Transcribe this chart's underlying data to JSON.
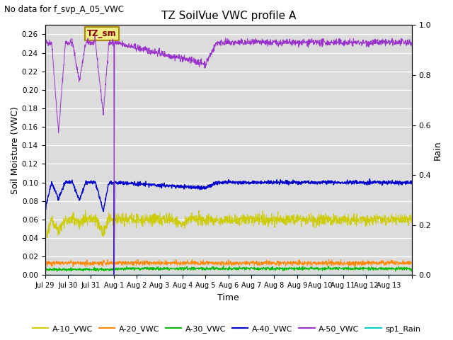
{
  "title": "TZ SoilVue VWC profile A",
  "no_data_text": "No data for f_svp_A_05_VWC",
  "xlabel": "Time",
  "ylabel_left": "Soil Moisture (VWC)",
  "ylabel_right": "Rain",
  "annotation": "TZ_sm",
  "ylim_left": [
    0.0,
    0.27
  ],
  "ylim_right": [
    0.0,
    1.0
  ],
  "background_color": "#dcdcdc",
  "figwidth": 6.4,
  "figheight": 4.8,
  "dpi": 100,
  "x_ticks": [
    "Jul 29",
    "Jul 30",
    "Jul 31",
    "Aug 1",
    "Aug 2",
    "Aug 3",
    "Aug 4",
    "Aug 5",
    "Aug 6",
    "Aug 7",
    "Aug 8",
    "Aug 9",
    "Aug 10",
    "Aug 11",
    "Aug 12",
    "Aug 13"
  ],
  "legend_colors": [
    "#cccc00",
    "#ff8800",
    "#00bb00",
    "#0000cc",
    "#9933cc",
    "#00cccc"
  ],
  "legend_labels": [
    "A-10_VWC",
    "A-20_VWC",
    "A-30_VWC",
    "A-40_VWC",
    "A-50_VWC",
    "sp1_Rain"
  ],
  "seed": 42
}
